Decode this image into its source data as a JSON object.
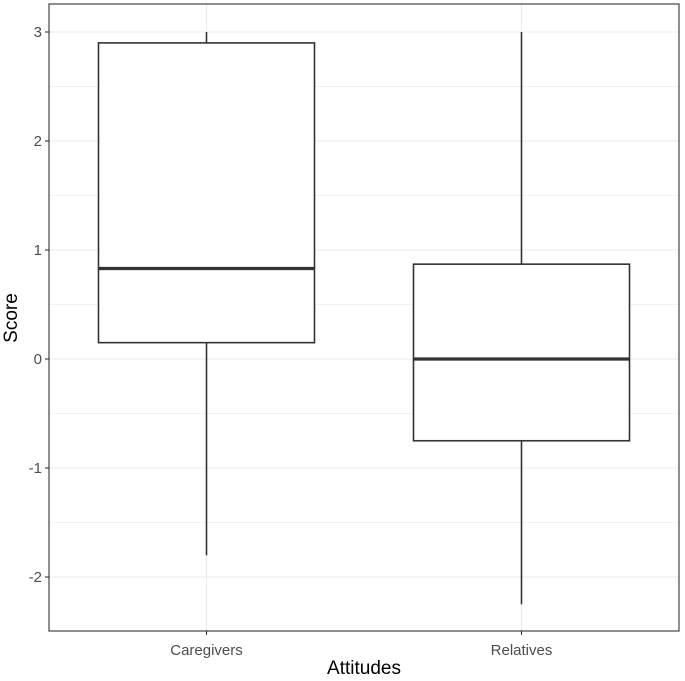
{
  "chart_data": {
    "type": "boxplot",
    "title": "",
    "xlabel": "Attitudes",
    "ylabel": "Score",
    "ylim": [
      -2.5,
      3.3
    ],
    "yticks": [
      -2,
      -1,
      0,
      1,
      2,
      3
    ],
    "ytick_labels": [
      "-2",
      "-1",
      "0",
      "1",
      "2",
      "3"
    ],
    "grid": true,
    "categories": [
      "Caregivers",
      "Relatives"
    ],
    "boxes": [
      {
        "category": "Caregivers",
        "whisker_low": -1.8,
        "q1": 0.15,
        "median": 0.83,
        "q3": 2.9,
        "whisker_high": 3.0
      },
      {
        "category": "Relatives",
        "whisker_low": -2.25,
        "q1": -0.75,
        "median": 0.0,
        "q3": 0.87,
        "whisker_high": 3.0
      }
    ]
  }
}
